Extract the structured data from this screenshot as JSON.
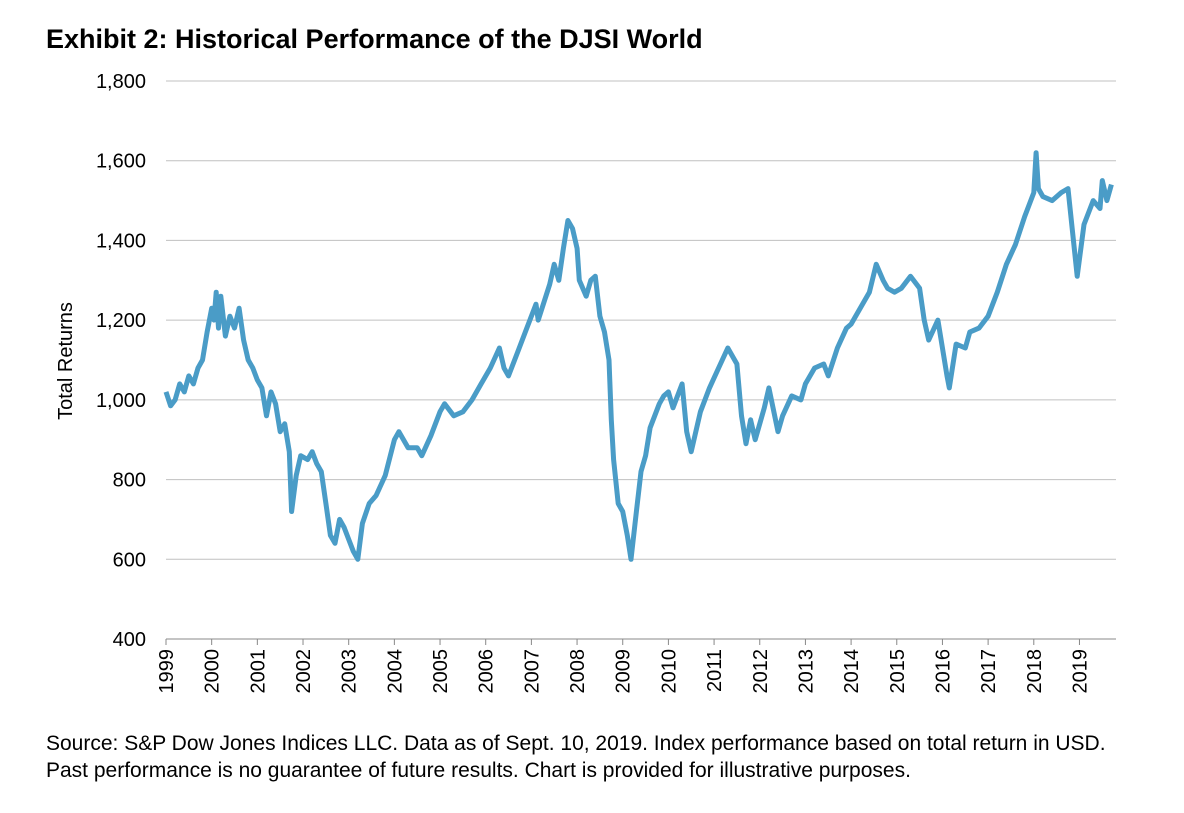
{
  "chart_data": {
    "type": "line",
    "title": "Exhibit 2: Historical Performance of the DJSI World",
    "y_label": "Total Returns",
    "note": "Source: S&P Dow Jones Indices LLC.  Data as of Sept. 10, 2019.  Index performance based on total return in USD.  Past performance is no guarantee of future results.  Chart is provided for illustrative purposes.",
    "xlim": [
      1999,
      2019.8
    ],
    "xticks": [
      1999,
      2000,
      2001,
      2002,
      2003,
      2004,
      2005,
      2006,
      2007,
      2008,
      2009,
      2010,
      2011,
      2012,
      2013,
      2014,
      2015,
      2016,
      2017,
      2018,
      2019
    ],
    "ylim": [
      400,
      1800
    ],
    "yticks": [
      400,
      600,
      800,
      {
        "value": 1000,
        "label": "1,000"
      },
      {
        "value": 1200,
        "label": "1,200"
      },
      {
        "value": 1400,
        "label": "1,400"
      },
      {
        "value": 1600,
        "label": "1,600"
      },
      {
        "value": 1800,
        "label": "1,800"
      }
    ],
    "grid": true,
    "x": [
      1999.0,
      1999.1,
      1999.2,
      1999.3,
      1999.4,
      1999.5,
      1999.6,
      1999.7,
      1999.8,
      1999.9,
      2000.0,
      2000.05,
      2000.1,
      2000.15,
      2000.2,
      2000.3,
      2000.4,
      2000.5,
      2000.6,
      2000.7,
      2000.8,
      2000.9,
      2001.0,
      2001.1,
      2001.2,
      2001.3,
      2001.4,
      2001.5,
      2001.6,
      2001.7,
      2001.75,
      2001.85,
      2001.95,
      2002.1,
      2002.2,
      2002.3,
      2002.4,
      2002.5,
      2002.6,
      2002.7,
      2002.8,
      2002.9,
      2003.0,
      2003.1,
      2003.2,
      2003.3,
      2003.45,
      2003.6,
      2003.8,
      2004.0,
      2004.1,
      2004.3,
      2004.5,
      2004.6,
      2004.8,
      2005.0,
      2005.1,
      2005.3,
      2005.5,
      2005.7,
      2005.9,
      2006.1,
      2006.3,
      2006.4,
      2006.5,
      2006.7,
      2006.9,
      2007.1,
      2007.15,
      2007.4,
      2007.5,
      2007.6,
      2007.7,
      2007.8,
      2007.9,
      2008.0,
      2008.05,
      2008.2,
      2008.3,
      2008.4,
      2008.5,
      2008.6,
      2008.7,
      2008.75,
      2008.8,
      2008.9,
      2009.0,
      2009.1,
      2009.18,
      2009.3,
      2009.4,
      2009.5,
      2009.6,
      2009.7,
      2009.8,
      2009.9,
      2010.0,
      2010.1,
      2010.3,
      2010.4,
      2010.5,
      2010.7,
      2010.9,
      2011.1,
      2011.3,
      2011.5,
      2011.6,
      2011.7,
      2011.8,
      2011.9,
      2012.1,
      2012.2,
      2012.4,
      2012.5,
      2012.7,
      2012.9,
      2013.0,
      2013.2,
      2013.4,
      2013.5,
      2013.7,
      2013.9,
      2014.0,
      2014.2,
      2014.4,
      2014.55,
      2014.7,
      2014.8,
      2014.95,
      2015.1,
      2015.3,
      2015.5,
      2015.6,
      2015.7,
      2015.9,
      2016.1,
      2016.15,
      2016.3,
      2016.5,
      2016.6,
      2016.8,
      2017.0,
      2017.2,
      2017.4,
      2017.6,
      2017.8,
      2018.0,
      2018.05,
      2018.1,
      2018.2,
      2018.4,
      2018.6,
      2018.75,
      2018.85,
      2018.95,
      2019.1,
      2019.3,
      2019.45,
      2019.5,
      2019.6,
      2019.7
    ],
    "series": [
      {
        "name": "DJSI World",
        "color": "#4a9cc7",
        "values": [
          1020,
          985,
          1000,
          1040,
          1020,
          1060,
          1040,
          1080,
          1100,
          1170,
          1230,
          1200,
          1270,
          1180,
          1260,
          1160,
          1210,
          1180,
          1230,
          1150,
          1100,
          1080,
          1050,
          1030,
          960,
          1020,
          990,
          920,
          940,
          870,
          720,
          810,
          860,
          850,
          870,
          840,
          820,
          740,
          660,
          640,
          700,
          680,
          650,
          620,
          600,
          690,
          740,
          760,
          810,
          900,
          920,
          880,
          880,
          860,
          910,
          970,
          990,
          960,
          970,
          1000,
          1040,
          1080,
          1130,
          1080,
          1060,
          1120,
          1180,
          1240,
          1200,
          1290,
          1340,
          1300,
          1380,
          1450,
          1430,
          1380,
          1300,
          1260,
          1300,
          1310,
          1210,
          1170,
          1100,
          950,
          850,
          740,
          720,
          660,
          600,
          720,
          820,
          860,
          930,
          960,
          990,
          1010,
          1020,
          980,
          1040,
          920,
          870,
          970,
          1030,
          1080,
          1130,
          1090,
          960,
          890,
          950,
          900,
          980,
          1030,
          920,
          960,
          1010,
          1000,
          1040,
          1080,
          1090,
          1060,
          1130,
          1180,
          1190,
          1230,
          1270,
          1340,
          1300,
          1280,
          1270,
          1280,
          1310,
          1280,
          1200,
          1150,
          1200,
          1060,
          1030,
          1140,
          1130,
          1170,
          1180,
          1210,
          1270,
          1340,
          1390,
          1460,
          1520,
          1620,
          1530,
          1510,
          1500,
          1520,
          1530,
          1420,
          1310,
          1440,
          1500,
          1480,
          1550,
          1500,
          1540
        ]
      }
    ]
  }
}
